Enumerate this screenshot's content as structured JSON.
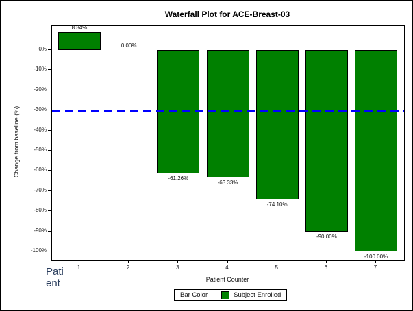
{
  "figure": {
    "title": "Waterfall Plot for ACE-Breast-03"
  },
  "overlay_text": {
    "lines": [
      "Pati",
      "ent"
    ]
  },
  "chart_data": {
    "type": "bar",
    "title": "Waterfall Plot for ACE-Breast-03",
    "xlabel": "Patient Counter",
    "ylabel": "Change from baseline (%)",
    "categories": [
      "1",
      "2",
      "3",
      "4",
      "5",
      "6",
      "7"
    ],
    "values": [
      8.84,
      0,
      -61.26,
      -63.33,
      -74.1,
      -90,
      -100
    ],
    "value_labels": [
      "8.84%",
      "0.00%",
      "-61.26%",
      "-63.33%",
      "-74.10%",
      "-90.00%",
      "-100.00%"
    ],
    "yticks": [
      0,
      -10,
      -20,
      -30,
      -40,
      -50,
      -60,
      -70,
      -80,
      -90,
      -100
    ],
    "ytick_labels": [
      "0%",
      "-10%",
      "-20%",
      "-30%",
      "-40%",
      "-50%",
      "-60%",
      "-70%",
      "-80%",
      "-90%",
      "-100%"
    ],
    "ylim": [
      -104.4,
      11.9
    ],
    "grid": false,
    "bar_color": "#008000",
    "bar_border_color": "#000000",
    "reference_line": {
      "y": -30,
      "style": "dashed",
      "color": "#0000ff"
    },
    "legend": {
      "position": "bottom",
      "title": "Bar Color",
      "entries": [
        {
          "label": "Subject Enrolled",
          "color": "#008000"
        }
      ]
    }
  }
}
